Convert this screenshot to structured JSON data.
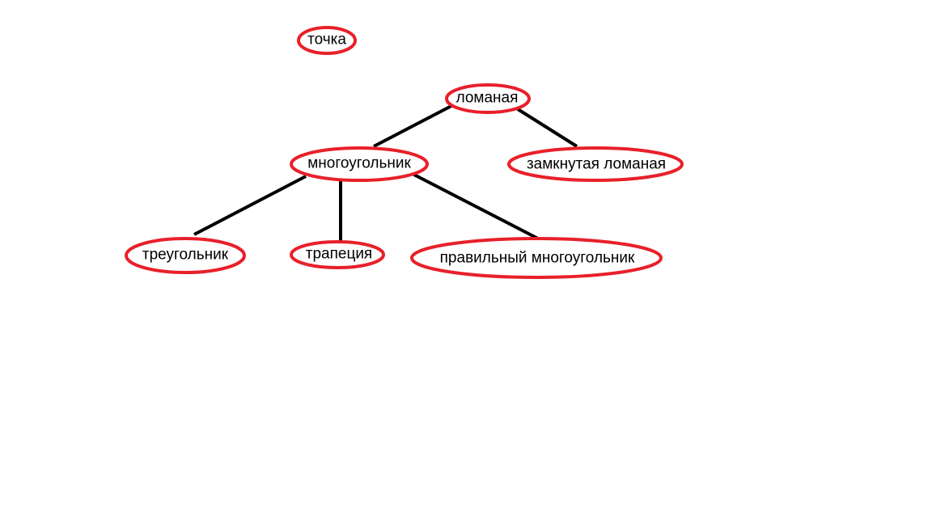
{
  "colors": {
    "node_outline": "#e8202a",
    "edge": "#000000",
    "text": "#000000",
    "background": "#ffffff"
  },
  "nodes": {
    "point": "точка",
    "polyline": "ломаная",
    "polygon": "многоугольник",
    "closed_polyline": "замкнутая ломаная",
    "triangle": "треугольник",
    "trapezoid": "трапеция",
    "regular_polygon": "правильный многоугольник"
  },
  "edges": [
    [
      "polyline",
      "polygon"
    ],
    [
      "polyline",
      "closed_polyline"
    ],
    [
      "polygon",
      "triangle"
    ],
    [
      "polygon",
      "trapezoid"
    ],
    [
      "polygon",
      "regular_polygon"
    ]
  ]
}
